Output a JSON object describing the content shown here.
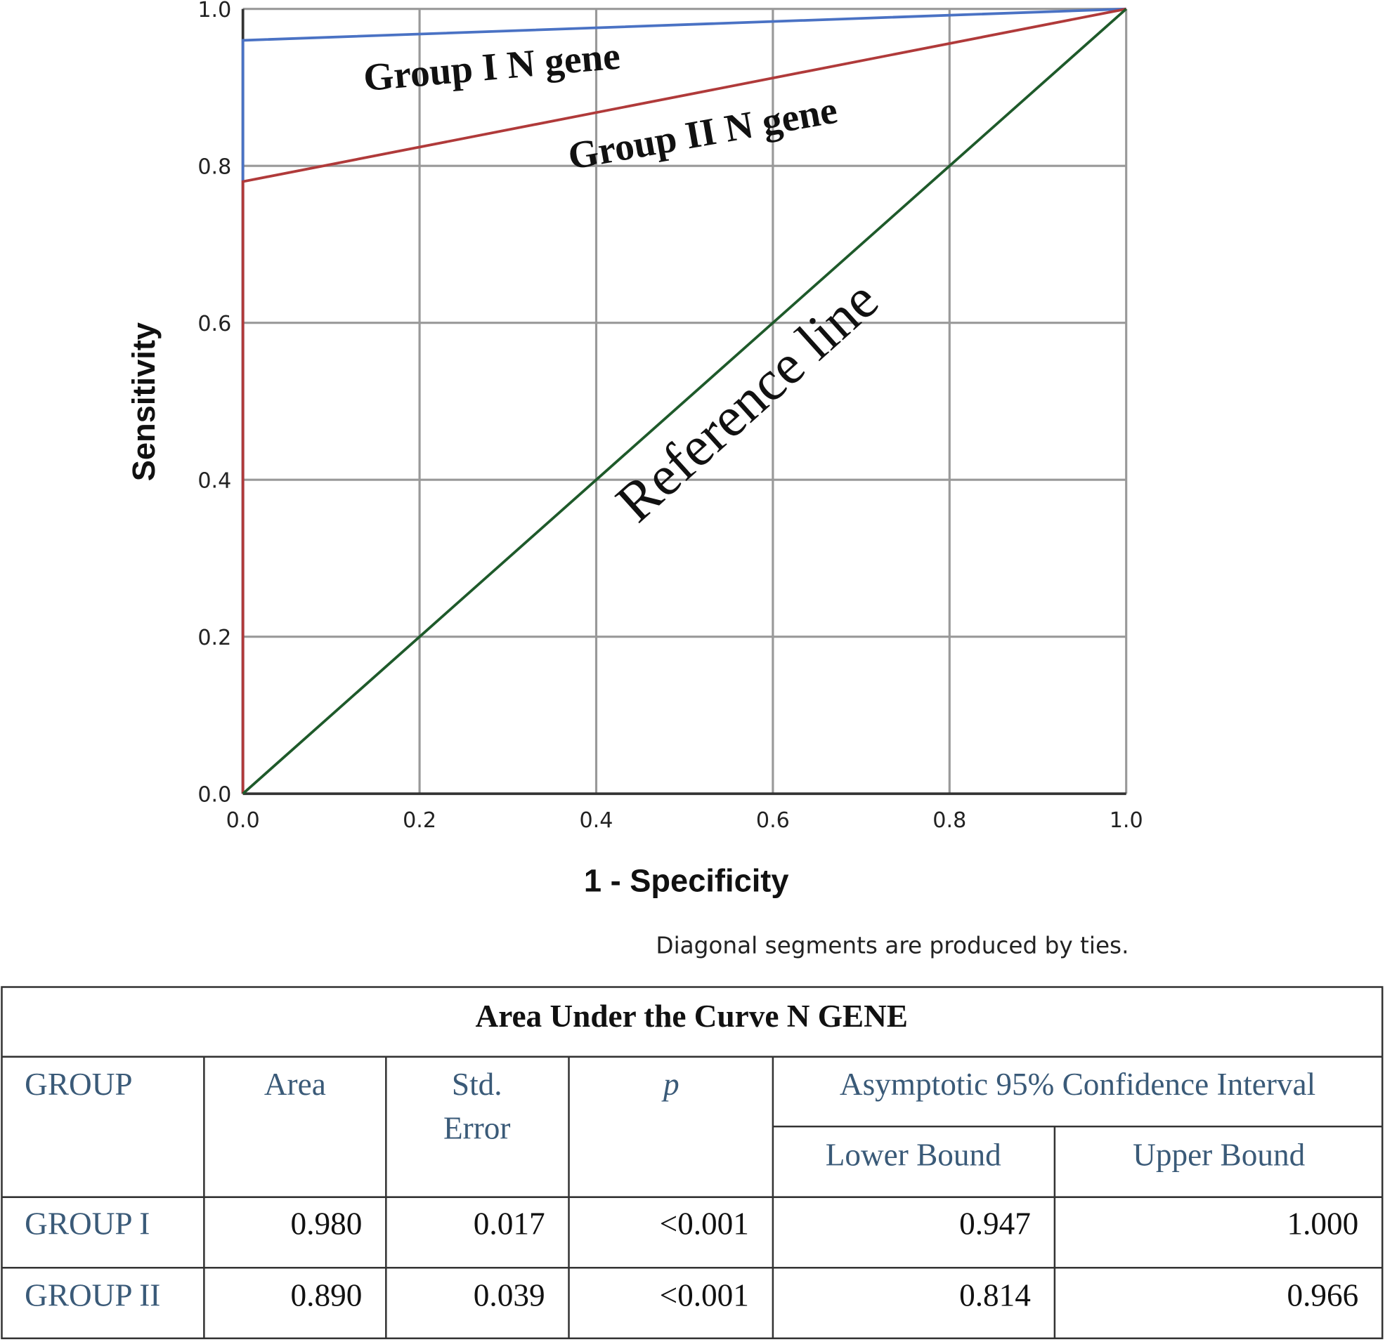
{
  "chart_data": {
    "type": "line",
    "xlabel": "1 - Specificity",
    "ylabel": "Sensitivity",
    "note": "Diagonal segments are produced by ties.",
    "xlim": [
      0,
      1
    ],
    "ylim": [
      0,
      1
    ],
    "xticks": [
      {
        "value": 0,
        "label": "0.0"
      },
      0.2,
      0.4,
      0.6,
      0.8,
      {
        "value": 1,
        "label": "1.0"
      }
    ],
    "yticks": [
      {
        "value": 0,
        "label": "0.0"
      },
      0.2,
      0.4,
      0.6,
      0.8,
      {
        "value": 1,
        "label": "1.0"
      }
    ],
    "grid": true,
    "series": [
      {
        "name": "Group I N gene",
        "color": "#4a72c4",
        "x": [
          0,
          0,
          1
        ],
        "values": [
          0,
          0.96,
          1
        ]
      },
      {
        "name": "Group II N gene",
        "color": "#b03a3a",
        "x": [
          0,
          0,
          1
        ],
        "values": [
          0,
          0.78,
          1
        ]
      },
      {
        "name": "Reference line",
        "color": "#1e5a2a",
        "x": [
          0,
          1
        ],
        "values": [
          0,
          1
        ]
      }
    ]
  },
  "table": {
    "title": "Area Under the Curve N GENE",
    "header": [
      "GROUP",
      "Area",
      [
        "Std.",
        "Error"
      ],
      "p",
      "Asymptotic 95% Confidence Interval"
    ],
    "subheader": [
      "Lower Bound",
      "Upper Bound"
    ],
    "rows": [
      [
        "GROUP I",
        "0.980",
        "0.017",
        "<0.001",
        "0.947",
        "1.000"
      ],
      [
        "GROUP II",
        "0.890",
        "0.039",
        "<0.001",
        "0.814",
        "0.966"
      ]
    ]
  }
}
